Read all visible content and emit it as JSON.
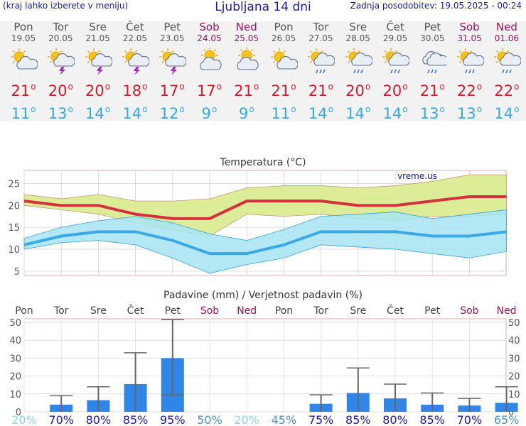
{
  "header": {
    "note": "(kraj lahko izberete v meniju)",
    "title": "Ljubljana 14 dni",
    "updated": "Zadnja posodobitev: 19.05.2025 - 00:24"
  },
  "days": [
    {
      "name": "Pon",
      "date": "19.05",
      "weekend": false,
      "icon": "sun-cloud-icon",
      "tmax": "21",
      "tmin": "11"
    },
    {
      "name": "Tor",
      "date": "20.05",
      "weekend": false,
      "icon": "sun-thunderstorm-icon",
      "tmax": "20",
      "tmin": "13"
    },
    {
      "name": "Sre",
      "date": "21.05",
      "weekend": false,
      "icon": "sun-thunderstorm-icon",
      "tmax": "20",
      "tmin": "14"
    },
    {
      "name": "Čet",
      "date": "22.05",
      "weekend": false,
      "icon": "sun-thunderstorm-icon",
      "tmax": "18",
      "tmin": "14"
    },
    {
      "name": "Pet",
      "date": "23.05",
      "weekend": false,
      "icon": "sun-thunderstorm-icon",
      "tmax": "17",
      "tmin": "12"
    },
    {
      "name": "Sob",
      "date": "24.05",
      "weekend": true,
      "icon": "cloud-sun-icon",
      "tmax": "17",
      "tmin": "9"
    },
    {
      "name": "Ned",
      "date": "25.05",
      "weekend": true,
      "icon": "cloud-sun-icon",
      "tmax": "21",
      "tmin": "9"
    },
    {
      "name": "Pon",
      "date": "26.05",
      "weekend": false,
      "icon": "sun-cloud-icon",
      "tmax": "21",
      "tmin": "11"
    },
    {
      "name": "Tor",
      "date": "27.05",
      "weekend": false,
      "icon": "sun-rain-icon",
      "tmax": "21",
      "tmin": "14"
    },
    {
      "name": "Sre",
      "date": "28.05",
      "weekend": false,
      "icon": "sun-rain-icon",
      "tmax": "20",
      "tmin": "14"
    },
    {
      "name": "Čet",
      "date": "29.05",
      "weekend": false,
      "icon": "sun-rain-icon",
      "tmax": "20",
      "tmin": "14"
    },
    {
      "name": "Pet",
      "date": "30.05",
      "weekend": false,
      "icon": "cloud-rain-icon",
      "tmax": "21",
      "tmin": "13"
    },
    {
      "name": "Sob",
      "date": "31.05",
      "weekend": true,
      "icon": "sun-rain-icon",
      "tmax": "22",
      "tmin": "13"
    },
    {
      "name": "Ned",
      "date": "01.06",
      "weekend": true,
      "icon": "sun-rain-icon",
      "tmax": "22",
      "tmin": "14"
    }
  ],
  "colors": {
    "tmax": "#d4303e",
    "tmin": "#3aa9e6",
    "max_band": "#d9eb8c",
    "min_band": "#a7e4f3",
    "overlap": "#8ed48b",
    "precip_bar": "#2f86e8",
    "weekend_text": "#a0105a",
    "prob_high": "#1818b0",
    "prob_low": "#8ad4ef"
  },
  "chart_data": [
    {
      "type": "line",
      "title": "Temperatura (°C)",
      "watermark": "vreme.us",
      "ylabel": "",
      "ylim": [
        4,
        28
      ],
      "yticks": [
        5,
        10,
        15,
        20,
        25
      ],
      "grid": true,
      "categories": [
        "19.05",
        "20.05",
        "21.05",
        "22.05",
        "23.05",
        "24.05",
        "25.05",
        "26.05",
        "27.05",
        "28.05",
        "29.05",
        "30.05",
        "31.05",
        "01.06"
      ],
      "series": [
        {
          "key": "tmax",
          "values": [
            21,
            20,
            20,
            18,
            17,
            17,
            21,
            21,
            21,
            20,
            20,
            21,
            22,
            22
          ]
        },
        {
          "key": "tmax_upper",
          "values": [
            22.5,
            21.5,
            22.5,
            21,
            21,
            21.5,
            24,
            24.5,
            24.5,
            24,
            24.5,
            25.5,
            27,
            27
          ]
        },
        {
          "key": "tmax_lower",
          "values": [
            20,
            19,
            18,
            16,
            14.5,
            13,
            18,
            17.5,
            18,
            17,
            16.5,
            17.5,
            17.5,
            18
          ]
        },
        {
          "key": "tmin",
          "values": [
            11,
            13,
            14,
            14,
            12,
            9,
            9,
            11,
            14,
            14,
            14,
            13,
            13,
            14
          ]
        },
        {
          "key": "tmin_upper",
          "values": [
            12.5,
            15,
            16.5,
            17.5,
            16,
            13.5,
            12,
            14.5,
            17.5,
            18,
            18.5,
            17,
            18,
            19
          ]
        },
        {
          "key": "tmin_lower",
          "values": [
            10,
            11.5,
            12,
            11,
            8,
            4.5,
            6.5,
            8,
            11,
            10.5,
            10,
            9,
            8,
            9.5
          ]
        }
      ]
    },
    {
      "type": "bar",
      "title": "Padavine (mm) / Verjetnost padavin (%)",
      "ylim": [
        0,
        52
      ],
      "yticks": [
        0,
        10,
        20,
        30,
        40,
        50
      ],
      "grid": true,
      "categories": [
        "Pon",
        "Tor",
        "Sre",
        "Čet",
        "Pet",
        "Sob",
        "Ned",
        "Pon",
        "Tor",
        "Sre",
        "Čet",
        "Pet",
        "Sob",
        "Ned"
      ],
      "weekend": [
        false,
        false,
        false,
        false,
        false,
        true,
        true,
        false,
        false,
        false,
        false,
        false,
        true,
        true
      ],
      "precip_mm": [
        0,
        4,
        6.5,
        15.5,
        30,
        0,
        0,
        0,
        4.5,
        10.5,
        7.5,
        4,
        3.5,
        5
      ],
      "precip_max": [
        0,
        9,
        14,
        33,
        51.5,
        0,
        0,
        0,
        9.5,
        24.5,
        15.5,
        10.5,
        7.5,
        14
      ],
      "precip_min": [
        0,
        0,
        0,
        0,
        9.5,
        0,
        0,
        0,
        0,
        0,
        0,
        0,
        0,
        0
      ],
      "probability": [
        "20%",
        "70%",
        "80%",
        "85%",
        "95%",
        "50%",
        "20%",
        "45%",
        "75%",
        "85%",
        "80%",
        "85%",
        "70%",
        "65%"
      ],
      "probability_values": [
        20,
        70,
        80,
        85,
        95,
        50,
        20,
        45,
        75,
        85,
        80,
        85,
        70,
        65
      ]
    }
  ]
}
